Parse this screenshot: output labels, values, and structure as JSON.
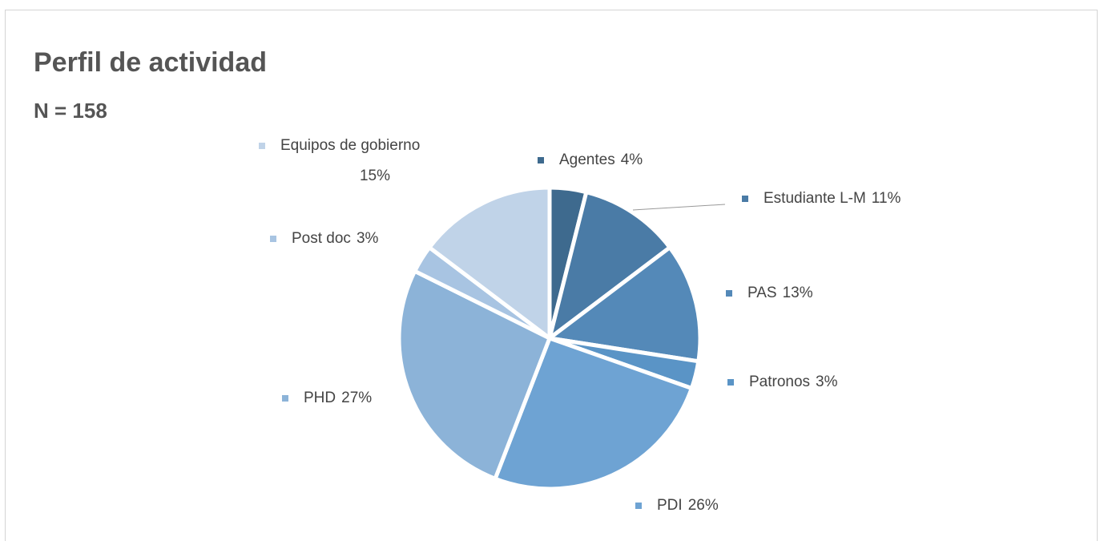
{
  "chart_data": {
    "type": "pie",
    "title": "Perfil de actividad",
    "subtitle": "N = 158",
    "categories": [
      "Agentes",
      "Estudiante L-M",
      "PAS",
      "Patronos",
      "PDI",
      "PHD",
      "Post doc",
      "Equipos de gobierno"
    ],
    "values": [
      4,
      11,
      13,
      3,
      26,
      27,
      3,
      15
    ],
    "value_labels": [
      "4%",
      "11%",
      "13%",
      "3%",
      "26%",
      "27%",
      "3%",
      "15%"
    ],
    "colors": [
      "#3e6a8e",
      "#4a7ba6",
      "#5489b8",
      "#5a94c6",
      "#6ea3d3",
      "#8cb3d8",
      "#a8c4e2",
      "#c0d3e8"
    ]
  }
}
